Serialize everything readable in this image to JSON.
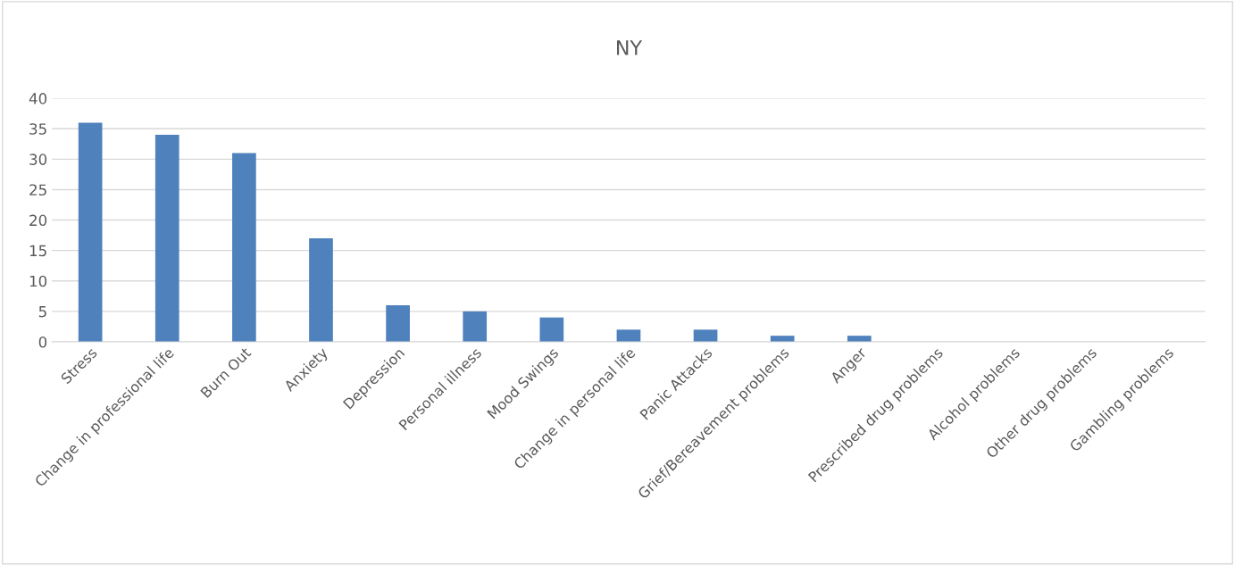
{
  "chart_data": {
    "type": "bar",
    "title": "NY",
    "categories": [
      "Stress",
      "Change in professional life",
      "Burn Out",
      "Anxiety",
      "Depression",
      "Personal illness",
      "Mood Swings",
      "Change in personal life",
      "Panic Attacks",
      "Grief/Bereavement problems",
      "Anger",
      "Prescribed drug problems",
      "Alcohol problems",
      "Other drug problems",
      "Gambling problems"
    ],
    "values": [
      36,
      34,
      31,
      17,
      6,
      5,
      4,
      2,
      2,
      1,
      1,
      0,
      0,
      0,
      0
    ],
    "color": "#4f81bd",
    "ylim": [
      0,
      40
    ],
    "yticks": [
      0,
      5,
      10,
      15,
      20,
      25,
      30,
      35,
      40
    ],
    "grid": "y",
    "legend": false
  }
}
